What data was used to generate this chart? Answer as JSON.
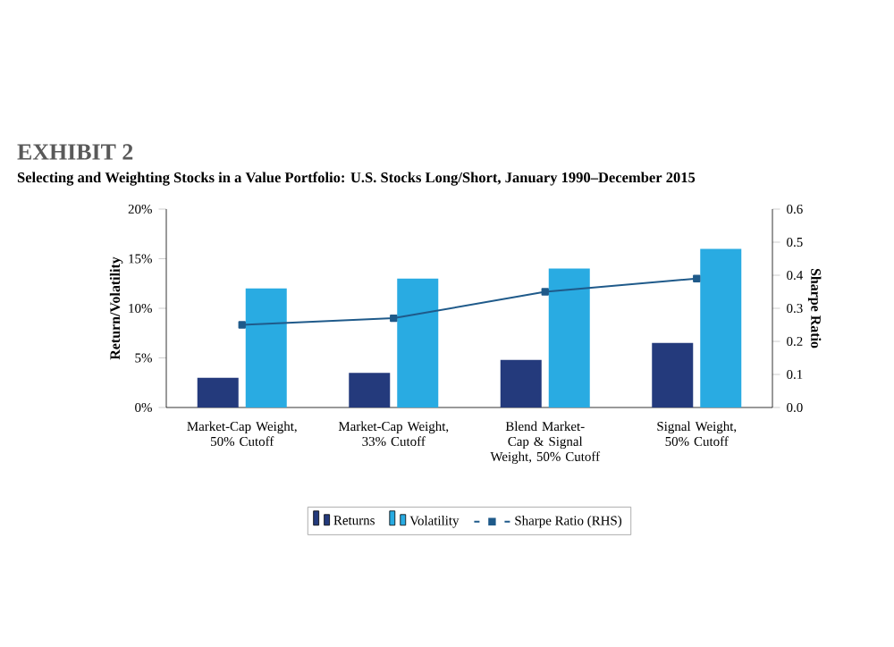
{
  "chart_data": {
    "type": "bar",
    "title": "EXHIBIT 2",
    "subtitle": "Selecting and Weighting Stocks in a Value Portfolio: U.S. Stocks Long/Short, January 1990–December 2015",
    "ylabel": "Return/Volatility",
    "y2label": "Sharpe Ratio",
    "categories": [
      "Market-Cap Weight, 50% Cutoff",
      "Market-Cap Weight, 33% Cutoff",
      "Blend Market-Cap & Signal Weight, 50% Cutoff",
      "Signal Weight, 50% Cutoff"
    ],
    "series": [
      {
        "name": "Returns",
        "color": "#243a7c",
        "values": [
          3.0,
          3.5,
          4.8,
          6.5
        ]
      },
      {
        "name": "Volatility",
        "color": "#29abe2",
        "values": [
          12.0,
          13.0,
          14.0,
          16.0
        ]
      },
      {
        "name": "Sharpe Ratio (RHS)",
        "type": "line",
        "axis": "y2",
        "marker": "square",
        "color": "#1f5a8a",
        "values": [
          0.25,
          0.27,
          0.35,
          0.39
        ]
      }
    ],
    "ylim": [
      0,
      20
    ],
    "yticks": [
      {
        "value": 0,
        "label": "0%"
      },
      {
        "value": 5,
        "label": "5%"
      },
      {
        "value": 10,
        "label": "10%"
      },
      {
        "value": 15,
        "label": "15%"
      },
      {
        "value": 20,
        "label": "20%"
      }
    ],
    "y2lim": [
      0,
      0.6
    ],
    "y2ticks": [
      {
        "value": 0,
        "label": "0.0"
      },
      {
        "value": 0.1,
        "label": "0.1"
      },
      {
        "value": 0.2,
        "label": "0.2"
      },
      {
        "value": 0.3,
        "label": "0.3"
      },
      {
        "value": 0.4,
        "label": "0.4"
      },
      {
        "value": 0.5,
        "label": "0.5"
      },
      {
        "value": 0.6,
        "label": "0.6"
      }
    ],
    "legend": "bottom"
  }
}
